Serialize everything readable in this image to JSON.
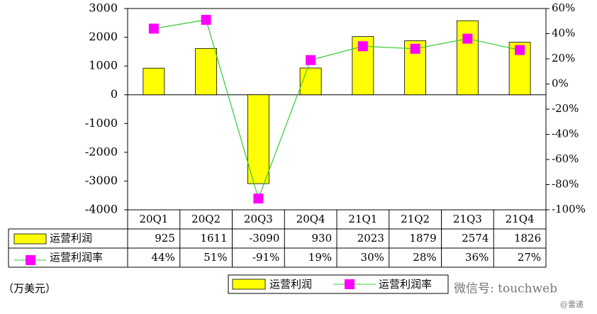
{
  "chart_data": {
    "type": "bar",
    "categories": [
      "20Q1",
      "20Q2",
      "20Q3",
      "20Q4",
      "21Q1",
      "21Q2",
      "21Q3",
      "21Q4"
    ],
    "series": [
      {
        "name": "运营利润",
        "color": "#ffff00",
        "values": [
          925,
          1611,
          -3090,
          930,
          2023,
          1879,
          2574,
          1826
        ]
      },
      {
        "name": "运营利润率",
        "type": "line",
        "axis": "y2",
        "color": "#ff00ff",
        "line_color": "#33cc33",
        "values": [
          44,
          51,
          -91,
          19,
          30,
          28,
          36,
          27
        ],
        "value_labels": [
          "44%",
          "51%",
          "-91%",
          "19%",
          "30%",
          "28%",
          "36%",
          "27%"
        ]
      }
    ],
    "ylim": [
      -4000,
      3000
    ],
    "yticks": [
      3000,
      2000,
      1000,
      0,
      -1000,
      -2000,
      -3000,
      -4000
    ],
    "y2lim": [
      -100,
      60
    ],
    "y2ticks": [
      {
        "value": 60,
        "label": "60%"
      },
      {
        "value": 40,
        "label": "40%"
      },
      {
        "value": 20,
        "label": "20%"
      },
      {
        "value": 0,
        "label": "0%"
      },
      {
        "value": -20,
        "label": "-20%"
      },
      {
        "value": -40,
        "label": "-40%"
      },
      {
        "value": -60,
        "label": "-60%"
      },
      {
        "value": -80,
        "label": "-80%"
      },
      {
        "value": -100,
        "label": "-100%"
      }
    ],
    "unit_label": "（万美元）",
    "watermark": "微信号: touchweb",
    "source_mark": "@雷递"
  }
}
